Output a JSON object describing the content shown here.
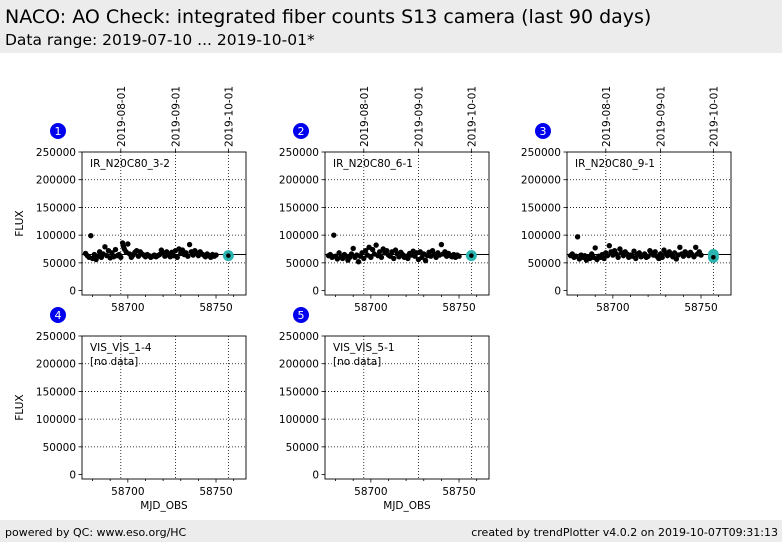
{
  "header": {
    "title": "NACO: AO Check: integrated fiber counts S13 camera (last 90 days)",
    "subtitle": "Data range: 2019-07-10 ... 2019-10-01*"
  },
  "footer": {
    "left": "powered by QC: www.eso.org/HC",
    "right": "created by trendPlotter v4.0.2 on 2019-10-07T09:31:13"
  },
  "colors": {
    "points": "#000000",
    "highlight": "#2ab5b0",
    "badge": "#0000ee",
    "grid": "#000000"
  },
  "chart_data": {
    "type": "scatter",
    "xlabel": "MJD_OBS",
    "ylabel": "FLUX",
    "xlim": [
      58674,
      58767
    ],
    "ylim": [
      -8000,
      250000
    ],
    "yticks": [
      0,
      50000,
      100000,
      150000,
      200000,
      250000
    ],
    "ytick_labels": [
      "0",
      "50000",
      "100000",
      "150000",
      "200000",
      "250000"
    ],
    "xticks": [
      58700,
      58750
    ],
    "xtick_labels": [
      "58700",
      "58750"
    ],
    "date_ticks": [
      {
        "mjd": 58696,
        "label": "2019-08-01"
      },
      {
        "mjd": 58727,
        "label": "2019-09-01"
      },
      {
        "mjd": 58757,
        "label": "2019-10-01"
      }
    ],
    "panels": [
      {
        "index": "1",
        "label": "IR_N20C80_3-2",
        "no_data": "",
        "ref_line": 65000,
        "highlight": [
          {
            "x": 58757,
            "y": 63000
          }
        ],
        "points": [
          [
            58676,
            67000
          ],
          [
            58677,
            63000
          ],
          [
            58678,
            60000
          ],
          [
            58679,
            99000
          ],
          [
            58680,
            58000
          ],
          [
            58681,
            65000
          ],
          [
            58682,
            56000
          ],
          [
            58683,
            62000
          ],
          [
            58684,
            70000
          ],
          [
            58685,
            60000
          ],
          [
            58686,
            66000
          ],
          [
            58687,
            79000
          ],
          [
            58688,
            63000
          ],
          [
            58689,
            72000
          ],
          [
            58690,
            59000
          ],
          [
            58691,
            68000
          ],
          [
            58692,
            61000
          ],
          [
            58693,
            74000
          ],
          [
            58694,
            63000
          ],
          [
            58695,
            65000
          ],
          [
            58696,
            60000
          ],
          [
            58697,
            86000
          ],
          [
            58697.5,
            80000
          ],
          [
            58698,
            75000
          ],
          [
            58699,
            70000
          ],
          [
            58700,
            84000
          ],
          [
            58701,
            66000
          ],
          [
            58702,
            60000
          ],
          [
            58703,
            64000
          ],
          [
            58704,
            69000
          ],
          [
            58705,
            72000
          ],
          [
            58706,
            62000
          ],
          [
            58707,
            70000
          ],
          [
            58708,
            66000
          ],
          [
            58709,
            64000
          ],
          [
            58710,
            61000
          ],
          [
            58711,
            65000
          ],
          [
            58712,
            63000
          ],
          [
            58713,
            60000
          ],
          [
            58714,
            62000
          ],
          [
            58715,
            64000
          ],
          [
            58716,
            61000
          ],
          [
            58717,
            63000
          ],
          [
            58718,
            65000
          ],
          [
            58719,
            73000
          ],
          [
            58720,
            68000
          ],
          [
            58721,
            62000
          ],
          [
            58722,
            70000
          ],
          [
            58723,
            66000
          ],
          [
            58724,
            61000
          ],
          [
            58725,
            69000
          ],
          [
            58726,
            63000
          ],
          [
            58727,
            72000
          ],
          [
            58728,
            60000
          ],
          [
            58729,
            75000
          ],
          [
            58730,
            67000
          ],
          [
            58731,
            73000
          ],
          [
            58732,
            65000
          ],
          [
            58733,
            68000
          ],
          [
            58734,
            62000
          ],
          [
            58735,
            83000
          ],
          [
            58736,
            70000
          ],
          [
            58737,
            64000
          ],
          [
            58738,
            72000
          ],
          [
            58739,
            67000
          ],
          [
            58740,
            63000
          ],
          [
            58741,
            70000
          ],
          [
            58742,
            66000
          ],
          [
            58743,
            64000
          ],
          [
            58744,
            61000
          ],
          [
            58745,
            66000
          ],
          [
            58746,
            63000
          ],
          [
            58747,
            60000
          ],
          [
            58748,
            65000
          ],
          [
            58749,
            62000
          ],
          [
            58750,
            64000
          ]
        ]
      },
      {
        "index": "2",
        "label": "IR_N20C80_6-1",
        "no_data": "",
        "ref_line": 65000,
        "highlight": [
          {
            "x": 58757,
            "y": 63000
          }
        ],
        "points": [
          [
            58676,
            63000
          ],
          [
            58677,
            65000
          ],
          [
            58678,
            60000
          ],
          [
            58679,
            100000
          ],
          [
            58680,
            62000
          ],
          [
            58681,
            57000
          ],
          [
            58682,
            68000
          ],
          [
            58683,
            60000
          ],
          [
            58684,
            58000
          ],
          [
            58685,
            65000
          ],
          [
            58686,
            62000
          ],
          [
            58687,
            55000
          ],
          [
            58688,
            60000
          ],
          [
            58689,
            66000
          ],
          [
            58690,
            76000
          ],
          [
            58691,
            60000
          ],
          [
            58692,
            64000
          ],
          [
            58693,
            52000
          ],
          [
            58694,
            62000
          ],
          [
            58695,
            68000
          ],
          [
            58696,
            58000
          ],
          [
            58697,
            72000
          ],
          [
            58698,
            64000
          ],
          [
            58699,
            78000
          ],
          [
            58700,
            60000
          ],
          [
            58701,
            74000
          ],
          [
            58702,
            66000
          ],
          [
            58703,
            82000
          ],
          [
            58704,
            63000
          ],
          [
            58705,
            70000
          ],
          [
            58706,
            60000
          ],
          [
            58707,
            75000
          ],
          [
            58708,
            68000
          ],
          [
            58709,
            72000
          ],
          [
            58710,
            64000
          ],
          [
            58711,
            62000
          ],
          [
            58712,
            70000
          ],
          [
            58713,
            58000
          ],
          [
            58714,
            73000
          ],
          [
            58715,
            66000
          ],
          [
            58716,
            61000
          ],
          [
            58717,
            69000
          ],
          [
            58718,
            65000
          ],
          [
            58719,
            60000
          ],
          [
            58720,
            62000
          ],
          [
            58721,
            58000
          ],
          [
            58722,
            67000
          ],
          [
            58723,
            64000
          ],
          [
            58724,
            71000
          ],
          [
            58725,
            62000
          ],
          [
            58726,
            68000
          ],
          [
            58727,
            56000
          ],
          [
            58728,
            70000
          ],
          [
            58729,
            60000
          ],
          [
            58730,
            66000
          ],
          [
            58731,
            54000
          ],
          [
            58732,
            63000
          ],
          [
            58733,
            69000
          ],
          [
            58734,
            62000
          ],
          [
            58735,
            72000
          ],
          [
            58736,
            65000
          ],
          [
            58737,
            60000
          ],
          [
            58738,
            68000
          ],
          [
            58739,
            64000
          ],
          [
            58740,
            83000
          ],
          [
            58741,
            66000
          ],
          [
            58742,
            70000
          ],
          [
            58743,
            62000
          ],
          [
            58744,
            67000
          ],
          [
            58745,
            63000
          ],
          [
            58746,
            61000
          ],
          [
            58747,
            65000
          ],
          [
            58748,
            60000
          ],
          [
            58749,
            64000
          ],
          [
            58750,
            62000
          ]
        ]
      },
      {
        "index": "3",
        "label": "IR_N20C80_9-1",
        "no_data": "",
        "ref_line": 65000,
        "highlight": [
          {
            "x": 58757,
            "y": 65000
          },
          {
            "x": 58757,
            "y": 60000
          }
        ],
        "points": [
          [
            58676,
            63000
          ],
          [
            58677,
            66000
          ],
          [
            58678,
            60000
          ],
          [
            58679,
            62000
          ],
          [
            58680,
            97000
          ],
          [
            58681,
            57000
          ],
          [
            58682,
            64000
          ],
          [
            58683,
            60000
          ],
          [
            58684,
            63000
          ],
          [
            58685,
            55000
          ],
          [
            58686,
            61000
          ],
          [
            58687,
            58000
          ],
          [
            58688,
            66000
          ],
          [
            58689,
            60000
          ],
          [
            58690,
            77000
          ],
          [
            58691,
            56000
          ],
          [
            58692,
            62000
          ],
          [
            58693,
            60000
          ],
          [
            58694,
            65000
          ],
          [
            58695,
            58000
          ],
          [
            58696,
            68000
          ],
          [
            58697,
            63000
          ],
          [
            58698,
            81000
          ],
          [
            58699,
            70000
          ],
          [
            58700,
            64000
          ],
          [
            58701,
            72000
          ],
          [
            58702,
            66000
          ],
          [
            58703,
            60000
          ],
          [
            58704,
            75000
          ],
          [
            58705,
            68000
          ],
          [
            58706,
            63000
          ],
          [
            58707,
            70000
          ],
          [
            58708,
            66000
          ],
          [
            58709,
            60000
          ],
          [
            58710,
            64000
          ],
          [
            58711,
            62000
          ],
          [
            58712,
            71000
          ],
          [
            58713,
            58000
          ],
          [
            58714,
            65000
          ],
          [
            58715,
            68000
          ],
          [
            58716,
            61000
          ],
          [
            58717,
            63000
          ],
          [
            58718,
            66000
          ],
          [
            58719,
            60000
          ],
          [
            58720,
            62000
          ],
          [
            58721,
            72000
          ],
          [
            58722,
            68000
          ],
          [
            58723,
            64000
          ],
          [
            58724,
            70000
          ],
          [
            58725,
            62000
          ],
          [
            58726,
            58000
          ],
          [
            58727,
            66000
          ],
          [
            58728,
            60000
          ],
          [
            58729,
            73000
          ],
          [
            58730,
            67000
          ],
          [
            58731,
            63000
          ],
          [
            58732,
            70000
          ],
          [
            58733,
            65000
          ],
          [
            58734,
            61000
          ],
          [
            58735,
            68000
          ],
          [
            58736,
            57000
          ],
          [
            58737,
            64000
          ],
          [
            58738,
            78000
          ],
          [
            58739,
            66000
          ],
          [
            58740,
            62000
          ],
          [
            58741,
            70000
          ],
          [
            58742,
            67000
          ],
          [
            58743,
            63000
          ],
          [
            58744,
            69000
          ],
          [
            58745,
            65000
          ],
          [
            58746,
            61000
          ],
          [
            58747,
            78000
          ],
          [
            58748,
            66000
          ],
          [
            58749,
            70000
          ],
          [
            58750,
            64000
          ]
        ]
      },
      {
        "index": "4",
        "label": "VIS_VIS_1-4",
        "no_data": "[no data]",
        "ref_line": null,
        "highlight": [],
        "points": []
      },
      {
        "index": "5",
        "label": "VIS_VIS_5-1",
        "no_data": "[no data]",
        "ref_line": null,
        "highlight": [],
        "points": []
      }
    ]
  }
}
